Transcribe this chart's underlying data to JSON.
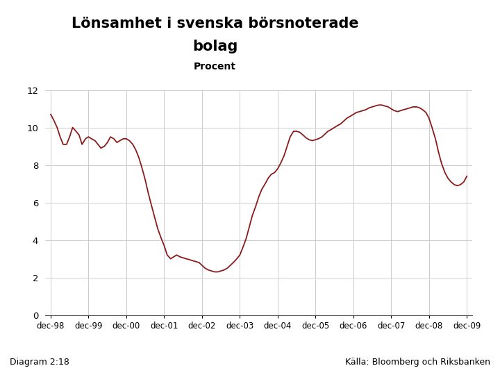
{
  "title_line1": "Lönsamhet i svenska börsnoterade",
  "title_line2": "bolag",
  "subtitle": "Procent",
  "footer_left": "Diagram 2:18",
  "footer_right": "Källa: Bloomberg och Riksbanken",
  "line_color": "#8B1A1A",
  "background_color": "#FFFFFF",
  "footer_bar_color": "#1C3A6E",
  "ylim": [
    0,
    12
  ],
  "yticks": [
    0,
    2,
    4,
    6,
    8,
    10,
    12
  ],
  "xtick_labels": [
    "dec-98",
    "dec-99",
    "dec-00",
    "dec-01",
    "dec-02",
    "dec-03",
    "dec-04",
    "dec-05",
    "dec-06",
    "dec-07",
    "dec-08",
    "dec-09"
  ],
  "grid_color": "#CCCCCC",
  "grid_linewidth": 0.7,
  "x_pts": [
    0.0,
    0.08,
    0.17,
    0.25,
    0.33,
    0.42,
    0.5,
    0.58,
    0.67,
    0.75,
    0.83,
    0.92,
    1.0,
    1.08,
    1.17,
    1.25,
    1.33,
    1.42,
    1.5,
    1.58,
    1.67,
    1.75,
    1.83,
    1.92,
    2.0,
    2.08,
    2.17,
    2.25,
    2.33,
    2.42,
    2.5,
    2.58,
    2.67,
    2.75,
    2.83,
    2.92,
    3.0,
    3.08,
    3.17,
    3.25,
    3.33,
    3.42,
    3.5,
    3.58,
    3.67,
    3.75,
    3.83,
    3.92,
    4.0,
    4.08,
    4.17,
    4.25,
    4.33,
    4.42,
    4.5,
    4.58,
    4.67,
    4.75,
    4.83,
    4.92,
    5.0,
    5.08,
    5.17,
    5.25,
    5.33,
    5.42,
    5.5,
    5.58,
    5.67,
    5.75,
    5.83,
    5.92,
    6.0,
    6.08,
    6.17,
    6.25,
    6.33,
    6.42,
    6.5,
    6.58,
    6.67,
    6.75,
    6.83,
    6.92,
    7.0,
    7.08,
    7.17,
    7.25,
    7.33,
    7.42,
    7.5,
    7.58,
    7.67,
    7.75,
    7.83,
    7.92,
    8.0,
    8.08,
    8.17,
    8.25,
    8.33,
    8.42,
    8.5,
    8.58,
    8.67,
    8.75,
    8.83,
    8.92,
    9.0,
    9.08,
    9.17,
    9.25,
    9.33,
    9.42,
    9.5,
    9.58,
    9.67,
    9.75,
    9.83,
    9.92,
    10.0,
    10.08,
    10.17,
    10.25,
    10.33,
    10.42,
    10.5,
    10.58,
    10.67,
    10.75,
    10.83,
    10.92,
    11.0
  ],
  "y_pts": [
    10.7,
    10.4,
    10.0,
    9.5,
    9.1,
    9.1,
    9.5,
    10.0,
    9.8,
    9.6,
    9.1,
    9.4,
    9.5,
    9.4,
    9.3,
    9.1,
    8.9,
    9.0,
    9.2,
    9.5,
    9.4,
    9.2,
    9.3,
    9.4,
    9.4,
    9.3,
    9.1,
    8.8,
    8.4,
    7.8,
    7.2,
    6.5,
    5.8,
    5.2,
    4.6,
    4.1,
    3.7,
    3.2,
    3.0,
    3.1,
    3.2,
    3.1,
    3.05,
    3.0,
    2.95,
    2.9,
    2.85,
    2.8,
    2.65,
    2.5,
    2.4,
    2.35,
    2.3,
    2.3,
    2.35,
    2.4,
    2.5,
    2.65,
    2.8,
    3.0,
    3.2,
    3.6,
    4.1,
    4.7,
    5.3,
    5.8,
    6.3,
    6.7,
    7.0,
    7.3,
    7.5,
    7.6,
    7.8,
    8.1,
    8.5,
    9.0,
    9.5,
    9.8,
    9.8,
    9.75,
    9.6,
    9.45,
    9.35,
    9.3,
    9.35,
    9.4,
    9.5,
    9.65,
    9.8,
    9.9,
    10.0,
    10.1,
    10.2,
    10.35,
    10.5,
    10.6,
    10.7,
    10.8,
    10.85,
    10.9,
    10.95,
    11.05,
    11.1,
    11.15,
    11.2,
    11.2,
    11.15,
    11.1,
    11.0,
    10.9,
    10.85,
    10.9,
    10.95,
    11.0,
    11.05,
    11.1,
    11.1,
    11.05,
    10.95,
    10.8,
    10.5,
    10.0,
    9.4,
    8.7,
    8.1,
    7.6,
    7.3,
    7.1,
    6.95,
    6.9,
    6.95,
    7.1,
    7.4
  ]
}
